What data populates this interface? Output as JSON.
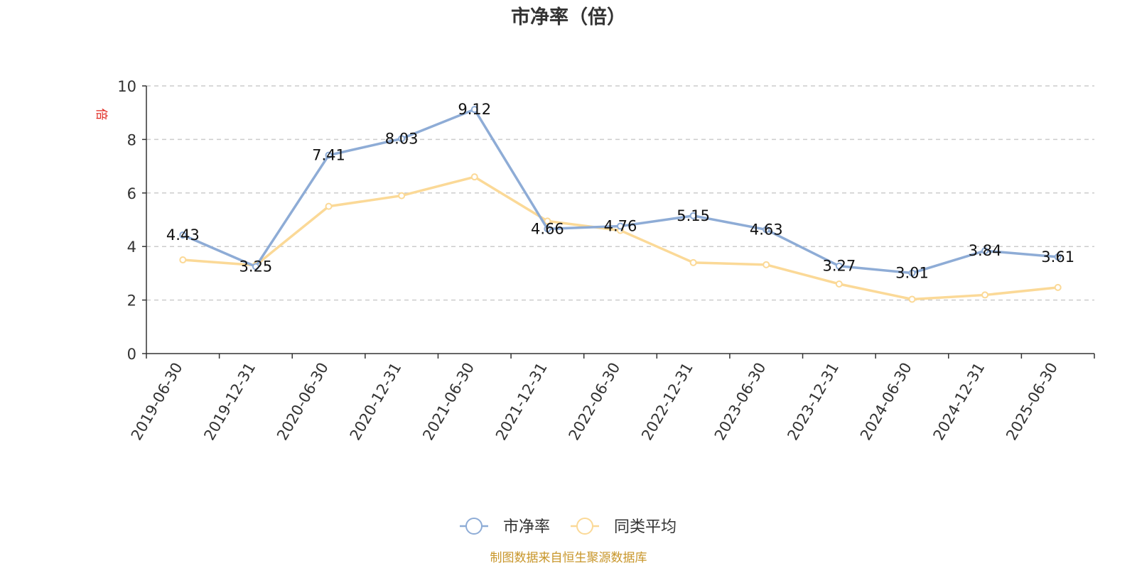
{
  "chart_data": {
    "type": "line",
    "title": "市净率（倍）",
    "ylabel": "倍",
    "xlabel": "",
    "categories": [
      "2019-06-30",
      "2019-12-31",
      "2020-06-30",
      "2020-12-31",
      "2021-06-30",
      "2021-12-31",
      "2022-06-30",
      "2022-12-31",
      "2023-06-30",
      "2023-12-31",
      "2024-06-30",
      "2024-12-31",
      "2025-06-30"
    ],
    "ylim": [
      0,
      10
    ],
    "yticks": [
      0,
      2,
      4,
      6,
      8,
      10
    ],
    "grid": true,
    "legend_position": "bottom-center",
    "series": [
      {
        "name": "市净率",
        "color": "#8eacd6",
        "values": [
          4.43,
          3.25,
          7.41,
          8.03,
          9.12,
          4.66,
          4.76,
          5.15,
          4.63,
          3.27,
          3.01,
          3.84,
          3.61
        ],
        "labels": [
          "4.43",
          "3.25",
          "7.41",
          "8.03",
          "9.12",
          "4.66",
          "4.76",
          "5.15",
          "4.63",
          "3.27",
          "3.01",
          "3.84",
          "3.61"
        ]
      },
      {
        "name": "同类平均",
        "color": "#fbd997",
        "values": [
          3.5,
          3.3,
          5.5,
          5.9,
          6.6,
          4.95,
          4.6,
          3.4,
          3.32,
          2.6,
          2.03,
          2.19,
          2.47
        ]
      }
    ],
    "source": "制图数据来自恒生聚源数据库"
  }
}
